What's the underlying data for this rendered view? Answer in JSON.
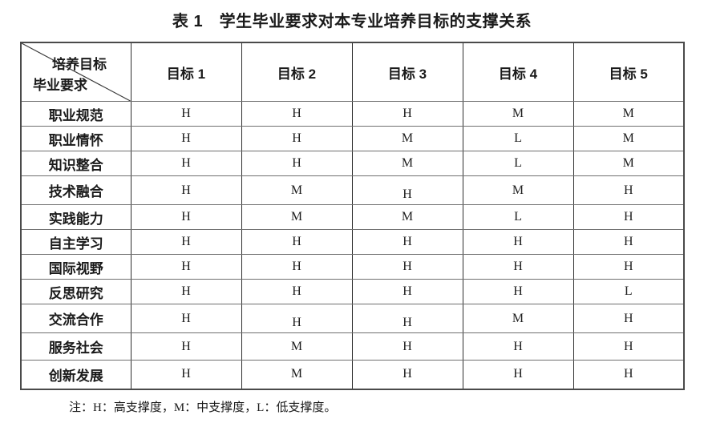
{
  "title": "表 1　学生毕业要求对本专业培养目标的支撑关系",
  "table": {
    "corner": {
      "top_label": "培养目标",
      "bottom_label": "毕业要求"
    },
    "columns": [
      "目标 1",
      "目标 2",
      "目标 3",
      "目标 4",
      "目标 5"
    ],
    "rows": [
      {
        "label": "职业规范",
        "values": [
          "H",
          "H",
          "H",
          "M",
          "M"
        ]
      },
      {
        "label": "职业情怀",
        "values": [
          "H",
          "H",
          "M",
          "L",
          "M"
        ]
      },
      {
        "label": "知识整合",
        "values": [
          "H",
          "H",
          "M",
          "L",
          "M"
        ]
      },
      {
        "label": "技术融合",
        "values": [
          "H",
          "M",
          "H",
          "M",
          "H"
        ]
      },
      {
        "label": "实践能力",
        "values": [
          "H",
          "M",
          "M",
          "L",
          "H"
        ]
      },
      {
        "label": "自主学习",
        "values": [
          "H",
          "H",
          "H",
          "H",
          "H"
        ]
      },
      {
        "label": "国际视野",
        "values": [
          "H",
          "H",
          "H",
          "H",
          "H"
        ]
      },
      {
        "label": "反思研究",
        "values": [
          "H",
          "H",
          "H",
          "H",
          "L"
        ]
      },
      {
        "label": "交流合作",
        "values": [
          "H",
          "H",
          "H",
          "M",
          "H"
        ]
      },
      {
        "label": "服务社会",
        "values": [
          "H",
          "M",
          "H",
          "H",
          "H"
        ]
      },
      {
        "label": "创新发展",
        "values": [
          "H",
          "M",
          "H",
          "H",
          "H"
        ]
      }
    ],
    "legend": {
      "H": "高支撑度",
      "M": "中支撑度",
      "L": "低支撑度"
    }
  },
  "note": "注：H：高支撑度，M：中支撑度，L：低支撑度。",
  "colors": {
    "text": "#1a1a1a",
    "border_vertical": "#2e2e2e",
    "border_horizontal": "#6f6f6f",
    "background": "#ffffff"
  }
}
